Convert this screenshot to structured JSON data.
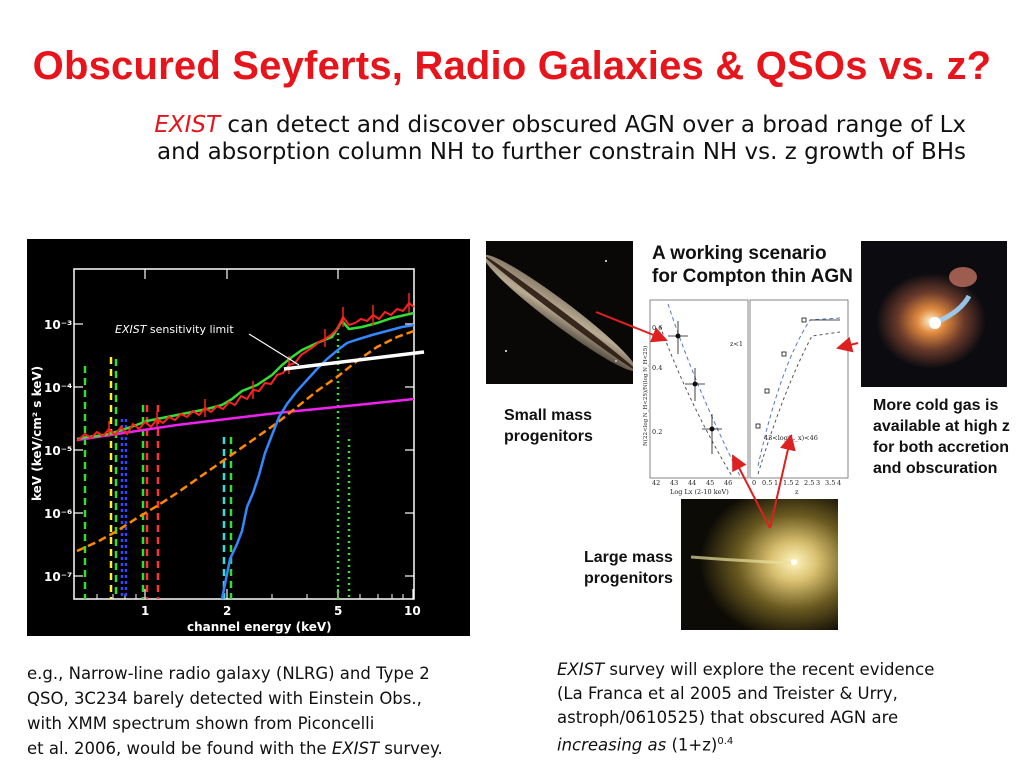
{
  "slide": {
    "title": "Obscured Seyferts, Radio Galaxies & QSOs vs. z?",
    "subtitle_em": "EXIST",
    "subtitle_line1_rest": " can detect and discover obscured AGN over a broad range of Lx",
    "subtitle_line2": "and absorption column NH to further constrain NH vs. z growth of BHs"
  },
  "spectrum": {
    "annotation_em": "EXIST",
    "annotation_rest": " sensitivity limit",
    "ylabel": "keV (keV/cm² s keV)",
    "xlabel": "channel energy (keV)",
    "y_ticks": [
      "10⁻³",
      "10⁻⁴",
      "10⁻⁵",
      "10⁻⁶",
      "10⁻⁷"
    ],
    "x_ticks": [
      "1",
      "2",
      "5",
      "10"
    ],
    "colors": {
      "background": "#000000",
      "data": "#ff2020",
      "model_total": "#33dd33",
      "absorbed_powerlaw": "#3388ff",
      "reflection": "#ff8800",
      "soft_powerlaw": "#ee22ee",
      "sensitivity": "#ffffff"
    }
  },
  "scenario": {
    "title_line1": "A working scenario",
    "title_line2": "for Compton thin AGN",
    "small_line1": "Small mass",
    "small_line2": "progenitors",
    "large_line1": "Large mass",
    "large_line2": "progenitors",
    "cold_gas": "More cold gas is available at high z for both accretion and obscuration",
    "arrow_color": "#dd2020"
  },
  "nh_plot": {
    "left_xlabel": "Log Lx (2-10 keV)",
    "right_xlabel": "z",
    "ylabel": "N(22<log N_H<25)/N(log N_H<25)",
    "z_label": "z<1",
    "lx_label": "43<log(L_x)<46",
    "left_xticks": [
      "42",
      "43",
      "44",
      "45",
      "46"
    ],
    "right_xticks": [
      "0",
      "0.5",
      "1",
      "1.5",
      "2",
      "2.5",
      "3",
      "3.5",
      "4"
    ],
    "y_ticks": [
      "0.6",
      "0.4",
      "0.2"
    ]
  },
  "captions": {
    "left_line1": "e.g., Narrow-line radio galaxy (NLRG) and Type 2",
    "left_line2": "QSO, 3C234  barely detected with Einstein Obs.,",
    "left_line3": "with XMM spectrum shown from Piconcelli",
    "left_line4_pre": "et al. 2006, would be found with the ",
    "left_line4_em": "EXIST",
    "left_line4_post": " survey.",
    "right_em1": "EXIST",
    "right_line1_rest": " survey will explore the recent evidence",
    "right_line2": "(La Franca et al 2005 and Treister & Urry,",
    "right_line3": "astroph/0610525) that obscured AGN are",
    "right_line4_em": "increasing as",
    "right_line4_rest": " (1+z)",
    "right_sup": "0.4"
  }
}
